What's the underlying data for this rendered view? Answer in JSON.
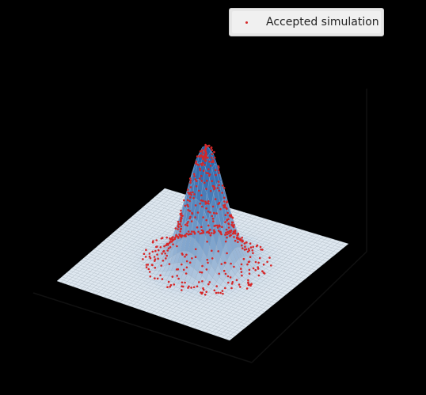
{
  "chart_data": {
    "type": "scatter",
    "title": "",
    "xlabel": "",
    "ylabel": "",
    "zlabel": "",
    "surface": "gaussian peak",
    "series": [
      {
        "name": "Accepted simulation",
        "color": "#d62728"
      }
    ],
    "legend_position": "top-right",
    "colors": {
      "surface_low": "#dfe8f0",
      "surface_high": "#1f5fa8",
      "points": "#d62728",
      "background": "#000000"
    }
  }
}
